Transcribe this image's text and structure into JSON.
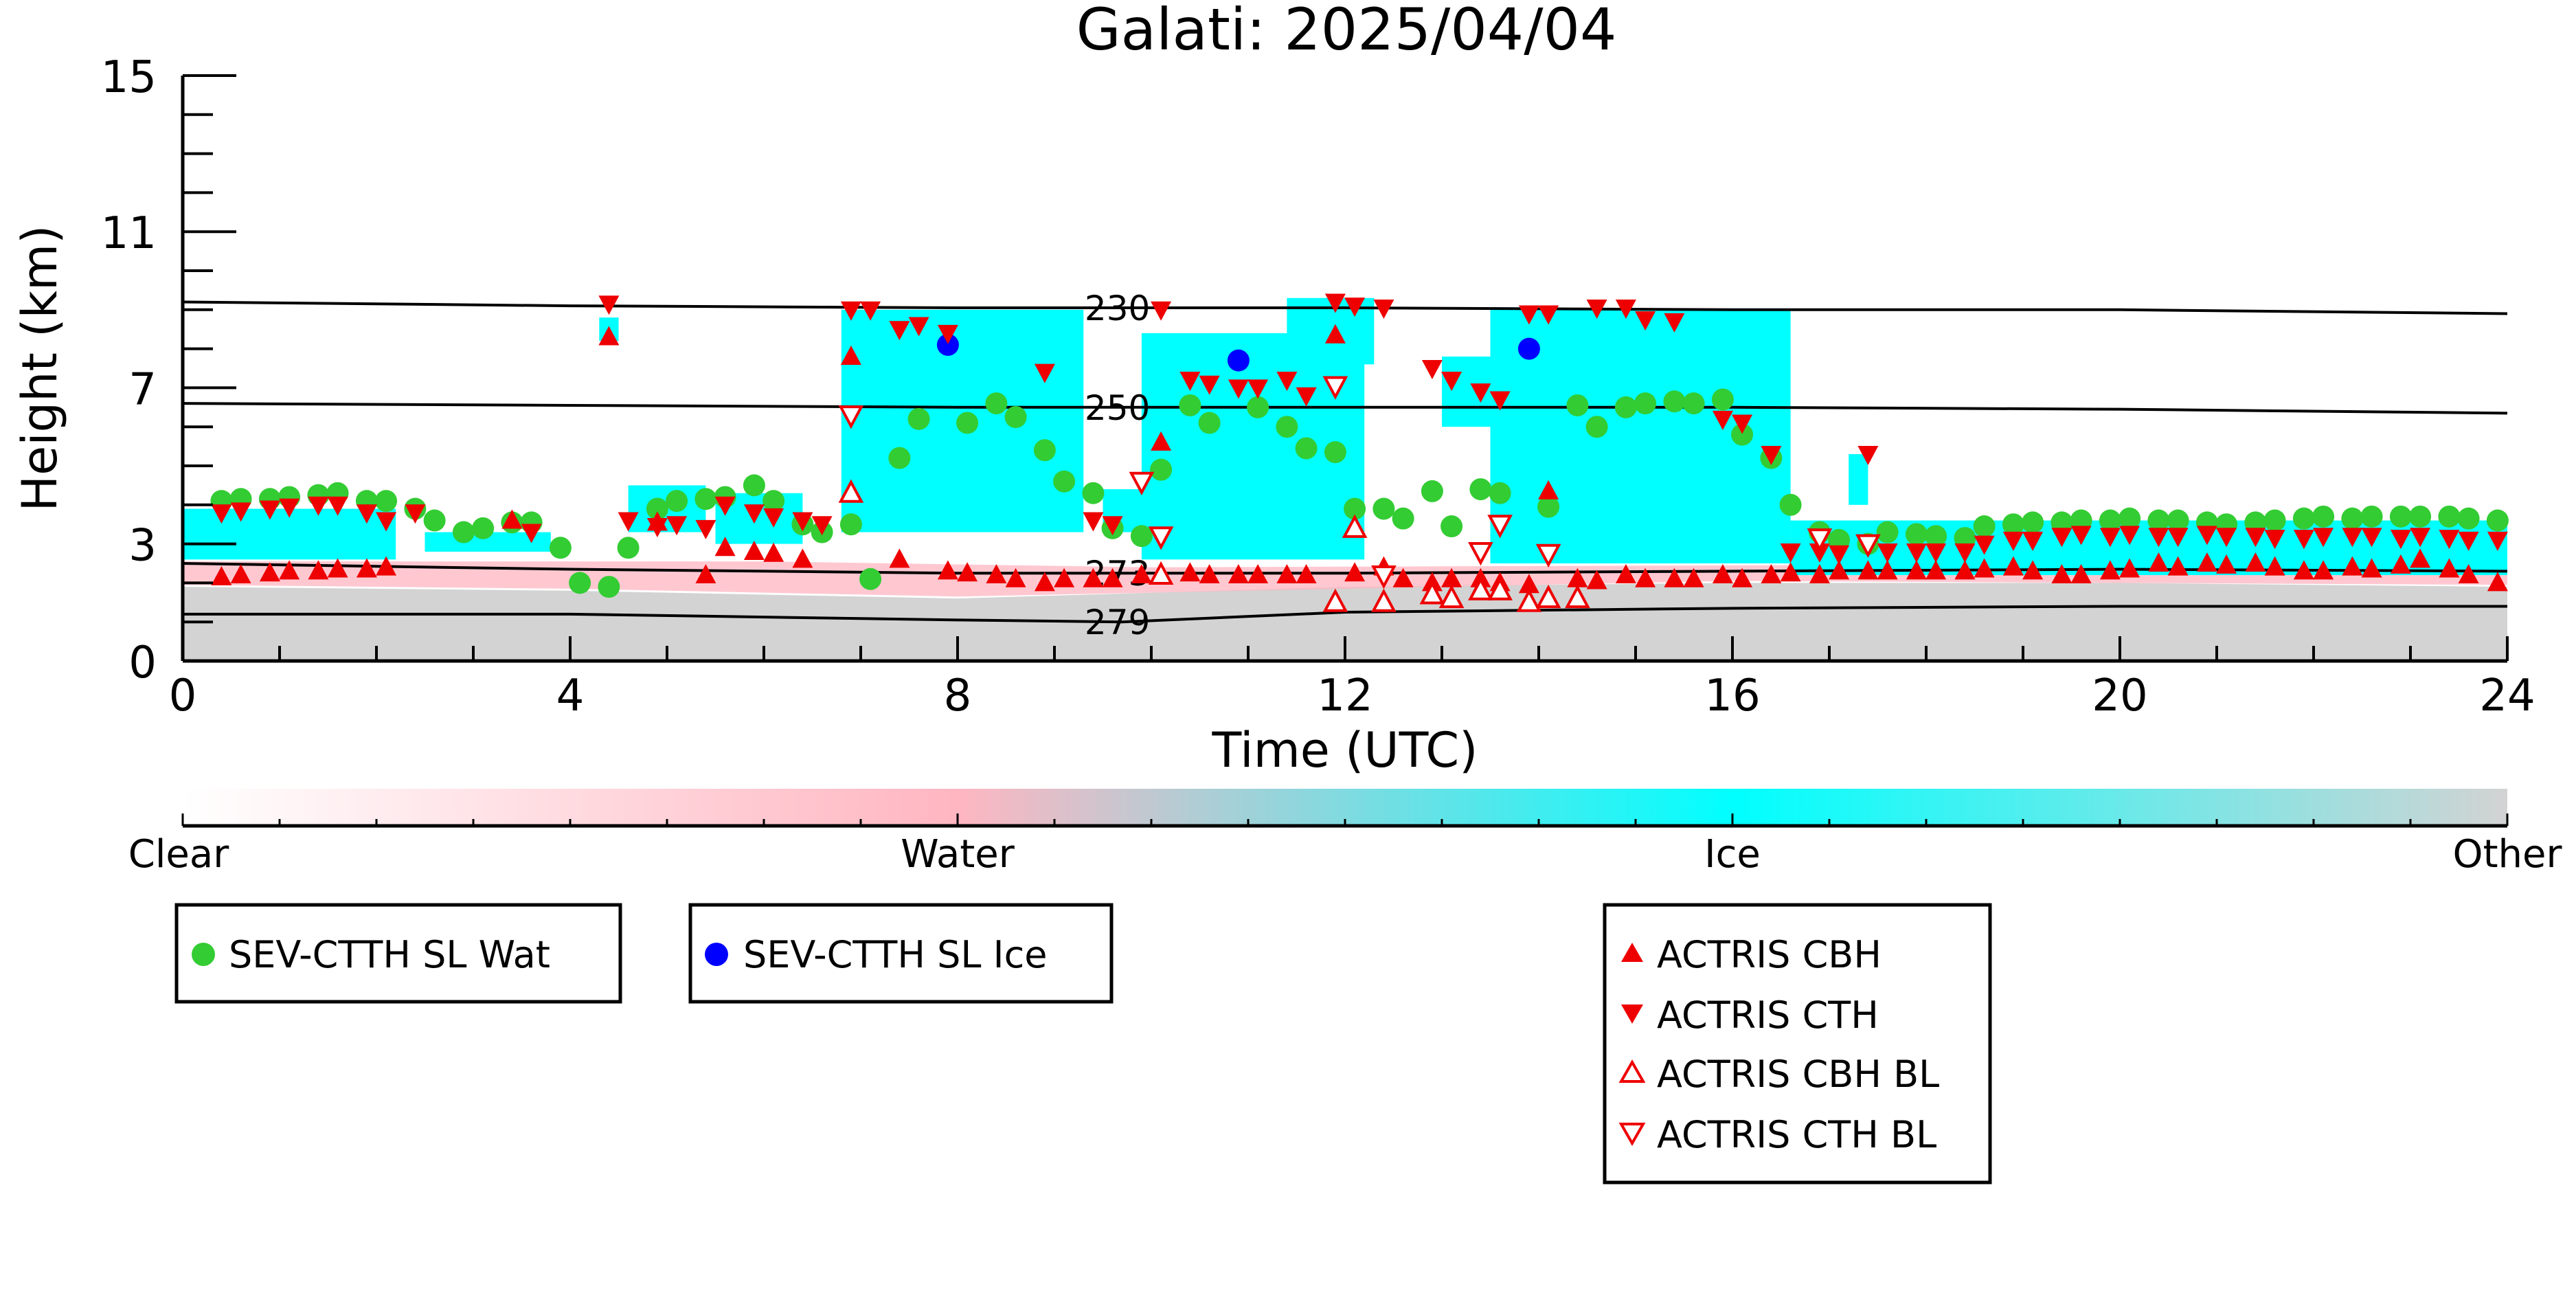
{
  "chart_data": {
    "type": "scatter",
    "title": "Galati: 2025/04/04",
    "xlabel": "Time (UTC)",
    "ylabel": "Height (km)",
    "xlim": [
      0,
      24
    ],
    "ylim": [
      0,
      15
    ],
    "xticks": [
      "0",
      "4",
      "8",
      "12",
      "16",
      "20",
      "24"
    ],
    "xtick_values": [
      0,
      4,
      8,
      12,
      16,
      20,
      24
    ],
    "yticks": [
      "0",
      "3",
      "7",
      "11",
      "15"
    ],
    "ytick_values": [
      0,
      3,
      7,
      11,
      15
    ],
    "colors": {
      "clear": "#ffffff",
      "water": "#ffb6c1",
      "ice": "#00ffff",
      "other": "#d3d3d3",
      "sev_wat": "#33cc33",
      "sev_ice": "#0000ff",
      "actris": "#ee0000"
    },
    "colorbar": {
      "labels": [
        "Clear",
        "Water",
        "Ice",
        "Other"
      ],
      "stops": [
        {
          "pos": 0.0,
          "color": "#ffffff"
        },
        {
          "pos": 0.333,
          "color": "#ffb6c1"
        },
        {
          "pos": 0.667,
          "color": "#00ffff"
        },
        {
          "pos": 1.0,
          "color": "#d3d3d3"
        }
      ]
    },
    "contours": [
      {
        "label": "230",
        "x": [
          0,
          4,
          8,
          12,
          16,
          20,
          24
        ],
        "y": [
          9.2,
          9.1,
          9.05,
          9.05,
          9.0,
          9.0,
          8.9
        ]
      },
      {
        "label": "250",
        "x": [
          0,
          4,
          8,
          12,
          16,
          20,
          24
        ],
        "y": [
          6.6,
          6.55,
          6.5,
          6.5,
          6.5,
          6.45,
          6.35
        ]
      },
      {
        "label": "273",
        "x": [
          0,
          4,
          8,
          12,
          16,
          20,
          24
        ],
        "y": [
          2.5,
          2.35,
          2.25,
          2.25,
          2.3,
          2.35,
          2.3
        ]
      },
      {
        "label": "279",
        "x": [
          0,
          4,
          8,
          9.7,
          12,
          16,
          20,
          24
        ],
        "y": [
          1.2,
          1.2,
          1.05,
          1.0,
          1.25,
          1.35,
          1.4,
          1.4
        ]
      }
    ],
    "series": [
      {
        "name": "SEV-CTTH SL Wat",
        "marker": "circle",
        "x": [
          0.4,
          0.6,
          0.9,
          1.1,
          1.4,
          1.6,
          1.9,
          2.1,
          2.4,
          2.6,
          2.9,
          3.1,
          3.4,
          3.6,
          3.9,
          4.1,
          4.4,
          4.6,
          4.9,
          5.1,
          5.4,
          5.6,
          5.9,
          6.1,
          6.4,
          6.6,
          6.9,
          7.1,
          7.4,
          7.6,
          8.1,
          8.4,
          8.6,
          8.9,
          9.1,
          9.4,
          9.6,
          9.9,
          10.1,
          10.4,
          10.6,
          11.1,
          11.4,
          11.6,
          11.9,
          12.1,
          12.4,
          12.6,
          12.9,
          13.1,
          13.4,
          13.6,
          14.1,
          14.4,
          14.6,
          14.9,
          15.1,
          15.4,
          15.6,
          15.9,
          16.1,
          16.4,
          16.6,
          16.9,
          17.1,
          17.4,
          17.6,
          17.9,
          18.1,
          18.4,
          18.6,
          18.9,
          19.1,
          19.4,
          19.6,
          19.9,
          20.1,
          20.4,
          20.6,
          20.9,
          21.1,
          21.4,
          21.6,
          21.9,
          22.1,
          22.4,
          22.6,
          22.9,
          23.1,
          23.4,
          23.6,
          23.9
        ],
        "y": [
          4.1,
          4.15,
          4.15,
          4.2,
          4.25,
          4.3,
          4.1,
          4.1,
          3.9,
          3.6,
          3.3,
          3.4,
          3.55,
          3.55,
          2.9,
          2.0,
          1.9,
          2.9,
          3.9,
          4.1,
          4.15,
          4.2,
          4.5,
          4.1,
          3.5,
          3.3,
          3.5,
          2.1,
          5.2,
          6.2,
          6.1,
          6.6,
          6.25,
          5.4,
          4.6,
          4.3,
          3.4,
          3.2,
          4.9,
          6.55,
          6.1,
          6.5,
          6.0,
          5.45,
          5.35,
          3.9,
          3.9,
          3.65,
          4.35,
          3.45,
          4.4,
          4.3,
          3.95,
          6.55,
          6.0,
          6.5,
          6.6,
          6.65,
          6.6,
          6.7,
          5.8,
          5.2,
          4.0,
          3.3,
          3.1,
          3.0,
          3.3,
          3.25,
          3.2,
          3.15,
          3.45,
          3.5,
          3.55,
          3.55,
          3.6,
          3.6,
          3.65,
          3.6,
          3.6,
          3.55,
          3.5,
          3.55,
          3.6,
          3.65,
          3.7,
          3.65,
          3.7,
          3.7,
          3.7,
          3.7,
          3.65,
          3.6
        ]
      },
      {
        "name": "SEV-CTTH SL Ice",
        "marker": "circle",
        "x": [
          7.9,
          10.9,
          13.9
        ],
        "y": [
          8.1,
          7.7,
          8.0
        ]
      },
      {
        "name": "ACTRIS CBH",
        "marker": "triangle-up",
        "x": [
          0.4,
          0.6,
          0.9,
          1.1,
          1.4,
          1.6,
          1.9,
          2.1,
          3.4,
          4.4,
          4.9,
          5.4,
          5.6,
          5.9,
          6.1,
          6.4,
          6.9,
          7.4,
          7.9,
          8.1,
          8.4,
          8.6,
          8.9,
          9.1,
          9.4,
          9.6,
          9.9,
          10.1,
          10.4,
          10.6,
          10.9,
          11.1,
          11.4,
          11.6,
          11.9,
          12.1,
          12.4,
          12.6,
          12.9,
          13.1,
          13.4,
          13.6,
          13.9,
          14.1,
          14.4,
          14.6,
          14.9,
          15.1,
          15.4,
          15.6,
          15.9,
          16.1,
          16.4,
          16.6,
          16.9,
          17.1,
          17.4,
          17.6,
          17.9,
          18.1,
          18.4,
          18.6,
          18.9,
          19.1,
          19.4,
          19.6,
          19.9,
          20.1,
          20.4,
          20.6,
          20.9,
          21.1,
          21.4,
          21.6,
          21.9,
          22.1,
          22.4,
          22.6,
          22.9,
          23.1,
          23.4,
          23.6,
          23.9
        ],
        "y": [
          2.15,
          2.2,
          2.25,
          2.3,
          2.3,
          2.35,
          2.35,
          2.4,
          3.6,
          8.3,
          3.55,
          2.2,
          2.9,
          2.8,
          2.75,
          2.6,
          7.8,
          2.6,
          2.3,
          2.25,
          2.2,
          2.1,
          2.0,
          2.1,
          2.1,
          2.1,
          2.2,
          5.6,
          2.25,
          2.2,
          2.2,
          2.2,
          2.2,
          2.2,
          8.35,
          2.25,
          2.4,
          2.1,
          2.0,
          2.1,
          2.1,
          2.0,
          1.95,
          4.35,
          2.1,
          2.05,
          2.2,
          2.1,
          2.1,
          2.1,
          2.2,
          2.1,
          2.2,
          2.25,
          2.2,
          2.3,
          2.3,
          2.3,
          2.3,
          2.3,
          2.3,
          2.35,
          2.4,
          2.3,
          2.2,
          2.2,
          2.3,
          2.35,
          2.5,
          2.4,
          2.5,
          2.45,
          2.5,
          2.4,
          2.3,
          2.3,
          2.4,
          2.35,
          2.45,
          2.6,
          2.35,
          2.2,
          2.0
        ]
      },
      {
        "name": "ACTRIS CTH",
        "marker": "triangle-down",
        "x": [
          0.4,
          0.6,
          0.9,
          1.1,
          1.4,
          1.6,
          1.9,
          2.1,
          2.4,
          3.6,
          4.4,
          4.6,
          4.9,
          5.1,
          5.4,
          5.6,
          5.9,
          6.1,
          6.4,
          6.6,
          6.9,
          7.1,
          7.4,
          7.6,
          7.9,
          8.9,
          9.4,
          9.6,
          10.1,
          10.4,
          10.6,
          10.9,
          11.1,
          11.4,
          11.6,
          11.9,
          12.1,
          12.4,
          12.9,
          13.1,
          13.4,
          13.6,
          13.9,
          14.1,
          14.6,
          14.9,
          15.1,
          15.4,
          15.9,
          16.1,
          16.4,
          16.6,
          16.9,
          17.1,
          17.4,
          17.6,
          17.9,
          18.1,
          18.4,
          18.6,
          18.9,
          19.1,
          19.4,
          19.6,
          19.9,
          20.1,
          20.4,
          20.6,
          20.9,
          21.1,
          21.4,
          21.6,
          21.9,
          22.1,
          22.4,
          22.6,
          22.9,
          23.1,
          23.4,
          23.6,
          23.9
        ],
        "y": [
          3.8,
          3.85,
          3.9,
          3.95,
          4.0,
          4.0,
          3.8,
          3.6,
          3.8,
          3.3,
          9.15,
          3.6,
          3.45,
          3.5,
          3.4,
          4.0,
          3.8,
          3.7,
          3.6,
          3.5,
          9.0,
          9.0,
          8.5,
          8.6,
          8.4,
          7.4,
          3.6,
          3.5,
          9.0,
          7.2,
          7.1,
          7.0,
          7.0,
          7.2,
          6.8,
          9.2,
          9.1,
          9.05,
          7.5,
          7.2,
          6.9,
          6.7,
          8.9,
          8.9,
          9.05,
          9.05,
          8.75,
          8.7,
          6.2,
          6.1,
          5.3,
          2.8,
          2.8,
          2.75,
          5.3,
          2.8,
          2.8,
          2.8,
          2.8,
          3.0,
          3.1,
          3.1,
          3.2,
          3.25,
          3.2,
          3.25,
          3.2,
          3.2,
          3.25,
          3.2,
          3.2,
          3.15,
          3.15,
          3.2,
          3.2,
          3.2,
          3.15,
          3.2,
          3.15,
          3.1,
          3.1
        ]
      },
      {
        "name": "ACTRIS CBH BL",
        "marker": "triangle-up-open",
        "x": [
          6.9,
          10.1,
          11.9,
          12.1,
          12.4,
          12.9,
          13.1,
          13.4,
          13.6,
          13.9,
          14.1,
          14.4
        ],
        "y": [
          4.3,
          2.2,
          1.5,
          3.4,
          1.5,
          1.7,
          1.6,
          1.8,
          1.8,
          1.5,
          1.6,
          1.6
        ]
      },
      {
        "name": "ACTRIS CTH BL",
        "marker": "triangle-down-open",
        "x": [
          6.9,
          9.9,
          10.1,
          11.9,
          12.4,
          13.4,
          13.6,
          14.1,
          16.9,
          17.4
        ],
        "y": [
          6.3,
          4.6,
          3.2,
          7.05,
          2.2,
          2.8,
          3.5,
          2.75,
          3.15,
          3.0
        ]
      }
    ],
    "legend": {
      "placement": "below",
      "groups": [
        {
          "entries": [
            "SEV-CTTH SL Wat"
          ]
        },
        {
          "entries": [
            "SEV-CTTH SL Ice"
          ]
        },
        {
          "entries": [
            "ACTRIS CBH",
            "ACTRIS CTH",
            "ACTRIS CBH BL",
            "ACTRIS CTH BL"
          ]
        }
      ]
    },
    "grid": false
  }
}
